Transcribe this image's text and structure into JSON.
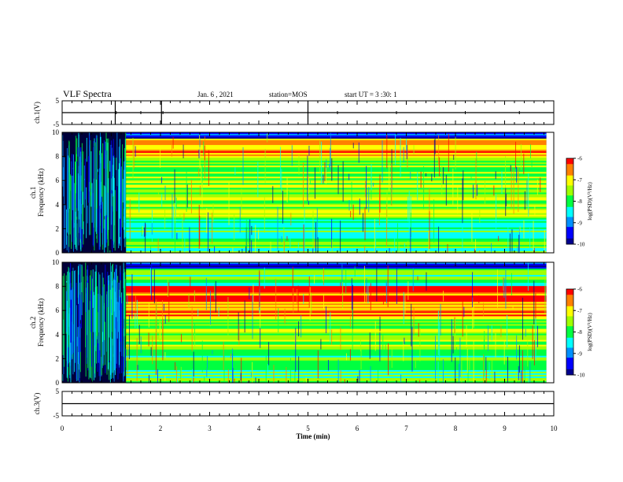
{
  "header": {
    "title": "VLF Spectra",
    "date": "Jan. 6 , 2021",
    "station": "station=MOS",
    "start": "start UT =  3 :30: 1"
  },
  "colors": {
    "background": "#000080",
    "colormap": [
      "#00008f",
      "#0000ff",
      "#0090ff",
      "#00ffff",
      "#00ff40",
      "#a0ff00",
      "#ffff00",
      "#ff8000",
      "#ff0000",
      "#ffffff"
    ]
  },
  "chart_data": [
    {
      "id": "ch1v",
      "type": "line",
      "ylabel": "ch.1(V)",
      "ylim": [
        -5,
        5
      ],
      "yticks": [
        "5",
        "-5"
      ],
      "x": [
        0,
        10
      ],
      "values": [
        0,
        0
      ],
      "xlim": [
        0,
        10
      ]
    },
    {
      "id": "ch1",
      "type": "heatmap",
      "ylabel": "ch.1\nFrequency (kHz)",
      "ylim": [
        0,
        10
      ],
      "yticks": [
        "0",
        "2",
        "4",
        "6",
        "8",
        "10"
      ],
      "xlim": [
        0,
        10
      ],
      "data_end_min": 9.85,
      "transition_min": 1.3,
      "colorbar": {
        "label": "log(PSD)(V²/Hz)",
        "range": [
          -10,
          -6
        ],
        "ticks": [
          "-6",
          "-7",
          "-8",
          "-9",
          "-10"
        ]
      }
    },
    {
      "id": "ch2",
      "type": "heatmap",
      "ylabel": "ch.2\nFrequency (kHz)",
      "ylim": [
        0,
        10
      ],
      "yticks": [
        "0",
        "2",
        "4",
        "6",
        "8",
        "10"
      ],
      "xlim": [
        0,
        10
      ],
      "data_end_min": 9.85,
      "transition_min": 1.3,
      "colorbar": {
        "label": "log(PSD)(V²/Hz)",
        "range": [
          -10,
          -6
        ],
        "ticks": [
          "-6",
          "-7",
          "-8",
          "-9",
          "-10"
        ]
      }
    },
    {
      "id": "ch3v",
      "type": "line",
      "ylabel": "ch.3(V)",
      "ylim": [
        -5,
        5
      ],
      "yticks": [
        "5",
        "-5"
      ],
      "x": [
        0,
        10
      ],
      "values": [
        0,
        0
      ],
      "xlim": [
        0,
        10
      ]
    }
  ],
  "xaxis": {
    "label": "Time (min)",
    "ticks": [
      "0",
      "1",
      "2",
      "3",
      "4",
      "5",
      "6",
      "7",
      "8",
      "9",
      "10"
    ]
  }
}
